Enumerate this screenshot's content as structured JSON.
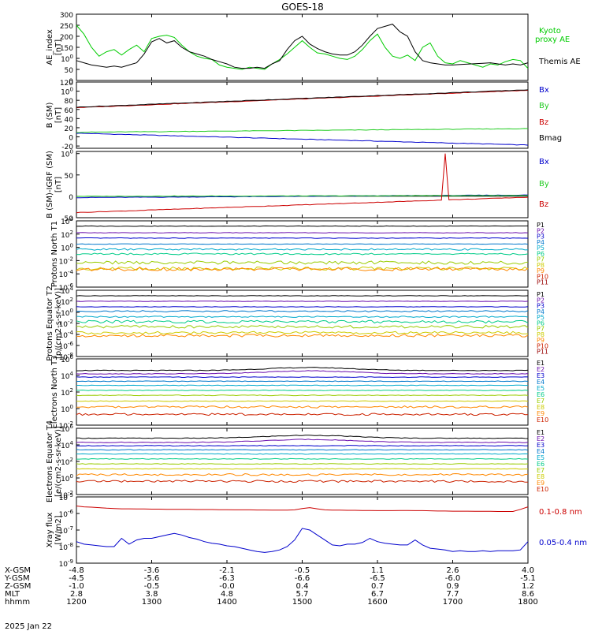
{
  "title": "GOES-18",
  "date_label": "2025 Jan 22",
  "colors": {
    "kyoto_green": "#00cc00",
    "black": "#000000",
    "bx_blue": "#0000cc",
    "by_green": "#22cc22",
    "bz_red": "#cc0000"
  },
  "chart_data": [
    {
      "type": "line",
      "panel": "ae",
      "ylabel": "AE_index [nT]",
      "ylim": [
        0,
        300
      ],
      "yticks": [
        "0",
        "50",
        "100",
        "150",
        "200",
        "250",
        "300"
      ],
      "x": [
        1200,
        1210,
        1220,
        1230,
        1240,
        1250,
        1260,
        1270,
        1280,
        1290,
        1300,
        1310,
        1320,
        1330,
        1340,
        1350,
        1360,
        1370,
        1380,
        1390,
        1400,
        1410,
        1420,
        1430,
        1440,
        1450,
        1460,
        1470,
        1480,
        1490,
        1500,
        1510,
        1520,
        1530,
        1540,
        1550,
        1560,
        1570,
        1580,
        1590,
        1600,
        1610,
        1620,
        1630,
        1640,
        1650,
        1660,
        1670,
        1680,
        1690,
        1700,
        1710,
        1720,
        1730,
        1740,
        1750,
        1760,
        1770,
        1780,
        1790,
        1800
      ],
      "series": [
        {
          "name": "Kyoto proxy AE",
          "color": "#00cc00",
          "values": [
            250,
            210,
            150,
            110,
            130,
            140,
            115,
            140,
            160,
            130,
            190,
            200,
            205,
            195,
            160,
            130,
            110,
            100,
            95,
            70,
            60,
            55,
            50,
            60,
            55,
            50,
            75,
            95,
            120,
            150,
            180,
            150,
            125,
            120,
            110,
            100,
            95,
            110,
            140,
            180,
            210,
            150,
            110,
            100,
            115,
            90,
            150,
            170,
            110,
            80,
            75,
            90,
            80,
            70,
            60,
            75,
            70,
            85,
            95,
            90,
            55
          ]
        },
        {
          "name": "Themis AE",
          "color": "#000000",
          "values": [
            90,
            80,
            70,
            65,
            60,
            65,
            60,
            70,
            80,
            120,
            175,
            190,
            170,
            180,
            150,
            130,
            120,
            110,
            95,
            85,
            75,
            60,
            55,
            55,
            60,
            55,
            75,
            90,
            140,
            180,
            200,
            165,
            145,
            130,
            120,
            115,
            115,
            130,
            160,
            200,
            235,
            245,
            255,
            220,
            200,
            130,
            90,
            80,
            75,
            70,
            70,
            72,
            74,
            76,
            78,
            80,
            75,
            70,
            75,
            70,
            80
          ]
        }
      ]
    },
    {
      "type": "line",
      "panel": "b",
      "ylabel": "B (SM) [nT]",
      "ylim": [
        -25,
        120
      ],
      "yticks": [
        "-20",
        "0",
        "20",
        "40",
        "60",
        "80",
        "100",
        "120"
      ],
      "x_range": [
        1200,
        1800
      ],
      "series": [
        {
          "name": "Bx",
          "color": "#0000cc",
          "start": 8,
          "end": -18
        },
        {
          "name": "By",
          "color": "#22cc22",
          "start": 10,
          "end": 18
        },
        {
          "name": "Bz",
          "color": "#cc0000",
          "start": 64,
          "end": 102
        },
        {
          "name": "Bmag",
          "color": "#000000",
          "start": 65,
          "end": 103
        }
      ]
    },
    {
      "type": "line",
      "panel": "b_igrf",
      "ylabel": "B (SM)-IGRF (SM) [nT]",
      "ylim": [
        -50,
        105
      ],
      "yticks": [
        "-50",
        "0",
        "50",
        "100"
      ],
      "x_range": [
        1200,
        1800
      ],
      "series": [
        {
          "name": "Bx",
          "color": "#0000cc",
          "start": -3,
          "end": 3
        },
        {
          "name": "By",
          "color": "#22cc22",
          "start": 0,
          "end": 2
        },
        {
          "name": "Bz",
          "color": "#cc0000",
          "start": -38,
          "end": -2,
          "spike_at": 1690,
          "spike_value": 100
        }
      ]
    },
    {
      "type": "line",
      "panel": "protons_north",
      "ylabel": "Protons North T1",
      "log": true,
      "ylim_exp": [
        -6,
        4
      ],
      "yticks": [
        "10-6",
        "10-4",
        "10-2",
        "100",
        "102",
        "104"
      ],
      "channels": [
        "P1",
        "P2",
        "P3",
        "P4",
        "P5",
        "P6",
        "P7",
        "P8",
        "P9",
        "P10",
        "P11"
      ],
      "channel_colors": [
        "#000000",
        "#6a0dad",
        "#0000cc",
        "#0077cc",
        "#00aacc",
        "#00cc88",
        "#99cc00",
        "#cccc00",
        "#ff8800",
        "#cc2200",
        "#990000"
      ],
      "levels_exp": [
        3.2,
        2.2,
        1.4,
        0.5,
        -0.3,
        -1.0,
        -2.3,
        -3.2,
        -3.3,
        null,
        null
      ]
    },
    {
      "type": "line",
      "panel": "protons_equator",
      "ylabel": "Protons Equator T2 [p/(cm2-s-sr-keV)]",
      "log": true,
      "ylim_exp": [
        -8,
        4
      ],
      "yticks": [
        "10-8",
        "10-6",
        "10-4",
        "10-2",
        "100",
        "102",
        "104"
      ],
      "channels": [
        "P1",
        "P2",
        "P3",
        "P4",
        "P5",
        "P6",
        "P7",
        "P8",
        "P9",
        "P10",
        "P11"
      ],
      "channel_colors": [
        "#000000",
        "#6a0dad",
        "#0000cc",
        "#0077cc",
        "#00aacc",
        "#00cc88",
        "#99cc00",
        "#cccc00",
        "#ff8800",
        "#cc2200",
        "#990000"
      ],
      "levels_exp": [
        3.0,
        2.0,
        1.0,
        0.2,
        -0.8,
        -1.7,
        -2.6,
        -3.7,
        -4.2,
        null,
        null
      ]
    },
    {
      "type": "line",
      "panel": "electrons_north",
      "ylabel": "Electrons North T3",
      "log": true,
      "ylim_exp": [
        -2,
        6
      ],
      "yticks": [
        "10-2",
        "100",
        "102",
        "104",
        "106"
      ],
      "channels": [
        "E1",
        "E2",
        "E3",
        "E4",
        "E5",
        "E6",
        "E7",
        "E8",
        "E9",
        "E10"
      ],
      "channel_colors": [
        "#000000",
        "#6a0dad",
        "#0000cc",
        "#0077cc",
        "#00aacc",
        "#00cc88",
        "#99cc00",
        "#cccc00",
        "#ff8800",
        "#cc2200"
      ],
      "levels_exp": [
        4.6,
        4.2,
        3.8,
        3.3,
        2.8,
        2.2,
        1.6,
        0.9,
        0.2,
        -0.7
      ]
    },
    {
      "type": "line",
      "panel": "electrons_equator",
      "ylabel": "Electrons Equator T4 [e/(cm2-s-sr-keV)]",
      "log": true,
      "ylim_exp": [
        -2,
        6
      ],
      "yticks": [
        "10-2",
        "100",
        "102",
        "104",
        "106"
      ],
      "channels": [
        "E1",
        "E2",
        "E3",
        "E4",
        "E5",
        "E6",
        "E7",
        "E8",
        "E9",
        "E10"
      ],
      "channel_colors": [
        "#000000",
        "#6a0dad",
        "#0000cc",
        "#0077cc",
        "#00aacc",
        "#00cc88",
        "#99cc00",
        "#cccc00",
        "#ff8800",
        "#cc2200"
      ],
      "levels_exp": [
        4.8,
        4.3,
        3.9,
        3.4,
        2.9,
        2.3,
        1.7,
        1.1,
        0.4,
        -0.4
      ]
    },
    {
      "type": "line",
      "panel": "xray",
      "ylabel": "Xray flux [W/m2]",
      "log": true,
      "ylim_exp": [
        -9,
        -5
      ],
      "yticks": [
        "10-9",
        "10-8",
        "10-7",
        "10-6",
        "10-5"
      ],
      "x": [
        1200,
        1210,
        1220,
        1230,
        1240,
        1250,
        1260,
        1270,
        1280,
        1290,
        1300,
        1310,
        1320,
        1330,
        1340,
        1350,
        1360,
        1370,
        1380,
        1390,
        1400,
        1410,
        1420,
        1430,
        1440,
        1450,
        1460,
        1470,
        1480,
        1490,
        1500,
        1510,
        1520,
        1530,
        1540,
        1550,
        1560,
        1570,
        1580,
        1590,
        1600,
        1610,
        1620,
        1630,
        1640,
        1650,
        1660,
        1670,
        1680,
        1690,
        1700,
        1710,
        1720,
        1730,
        1740,
        1750,
        1760,
        1770,
        1780,
        1790,
        1800
      ],
      "series": [
        {
          "name": "0.1-0.8 nm",
          "color": "#cc0000",
          "values_exp": [
            -5.55,
            -5.6,
            -5.62,
            -5.65,
            -5.68,
            -5.7,
            -5.72,
            -5.72,
            -5.73,
            -5.73,
            -5.74,
            -5.74,
            -5.75,
            -5.75,
            -5.75,
            -5.75,
            -5.76,
            -5.76,
            -5.76,
            -5.77,
            -5.77,
            -5.78,
            -5.78,
            -5.78,
            -5.79,
            -5.79,
            -5.8,
            -5.8,
            -5.8,
            -5.78,
            -5.7,
            -5.65,
            -5.72,
            -5.78,
            -5.8,
            -5.8,
            -5.81,
            -5.81,
            -5.82,
            -5.82,
            -5.83,
            -5.83,
            -5.83,
            -5.82,
            -5.82,
            -5.83,
            -5.83,
            -5.84,
            -5.85,
            -5.85,
            -5.86,
            -5.86,
            -5.86,
            -5.87,
            -5.87,
            -5.87,
            -5.88,
            -5.88,
            -5.88,
            -5.75,
            -5.6
          ]
        },
        {
          "name": "0.05-0.4 nm",
          "color": "#0000cc",
          "values_exp": [
            -7.7,
            -7.85,
            -7.9,
            -7.95,
            -8.0,
            -8.0,
            -7.5,
            -7.85,
            -7.6,
            -7.5,
            -7.5,
            -7.4,
            -7.3,
            -7.2,
            -7.3,
            -7.45,
            -7.55,
            -7.7,
            -7.8,
            -7.85,
            -7.95,
            -8.0,
            -8.1,
            -8.2,
            -8.3,
            -8.35,
            -8.3,
            -8.2,
            -8.0,
            -7.6,
            -6.9,
            -7.0,
            -7.3,
            -7.6,
            -7.9,
            -7.95,
            -7.85,
            -7.85,
            -7.75,
            -7.5,
            -7.7,
            -7.8,
            -7.85,
            -7.9,
            -7.9,
            -7.6,
            -7.9,
            -8.1,
            -8.15,
            -8.2,
            -8.3,
            -8.25,
            -8.3,
            -8.3,
            -8.25,
            -8.3,
            -8.25,
            -8.25,
            -8.25,
            -8.2,
            -7.7
          ]
        }
      ]
    }
  ],
  "legend": {
    "ae": [
      "Kyoto proxy AE",
      "Themis AE"
    ],
    "b": [
      "Bx",
      "By",
      "Bz",
      "Bmag"
    ],
    "b_igrf": [
      "Bx",
      "By",
      "Bz"
    ],
    "xray": [
      "0.1-0.8 nm",
      "0.05-0.4 nm"
    ]
  },
  "x_axis": {
    "row_labels": [
      "X-GSM",
      "Y-GSM",
      "Z-GSM",
      "MLT",
      "hhmm"
    ],
    "columns": [
      {
        "xgsm": "-4.8",
        "ygsm": "-4.5",
        "zgsm": "-1.0",
        "mlt": "2.8",
        "hhmm": "1200"
      },
      {
        "xgsm": "-3.6",
        "ygsm": "-5.6",
        "zgsm": "-0.5",
        "mlt": "3.8",
        "hhmm": "1300"
      },
      {
        "xgsm": "-2.1",
        "ygsm": "-6.3",
        "zgsm": "-0.0",
        "mlt": "4.8",
        "hhmm": "1400"
      },
      {
        "xgsm": "-0.5",
        "ygsm": "-6.6",
        "zgsm": "0.4",
        "mlt": "5.7",
        "hhmm": "1500"
      },
      {
        "xgsm": "1.1",
        "ygsm": "-6.5",
        "zgsm": "0.7",
        "mlt": "6.7",
        "hhmm": "1600"
      },
      {
        "xgsm": "2.6",
        "ygsm": "-6.0",
        "zgsm": "0.9",
        "mlt": "7.7",
        "hhmm": "1700"
      },
      {
        "xgsm": "4.0",
        "ygsm": "-5.1",
        "zgsm": "1.2",
        "mlt": "8.6",
        "hhmm": "1800"
      }
    ]
  }
}
